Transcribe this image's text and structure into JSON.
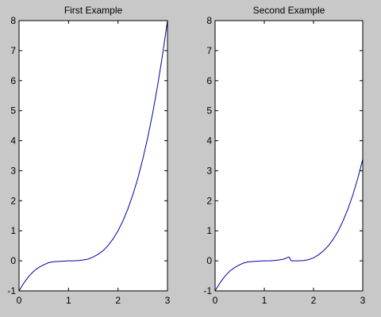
{
  "figure": {
    "background": "#c8c8c8",
    "axes_background": "#ffffff",
    "line_color": "#0000a0"
  },
  "chart_data": [
    {
      "type": "line",
      "title": "First Example",
      "xlabel": "",
      "ylabel": "",
      "xlim": [
        0,
        3
      ],
      "ylim": [
        -1,
        8
      ],
      "xticks": [
        0,
        1,
        2,
        3
      ],
      "yticks": [
        -1,
        0,
        1,
        2,
        3,
        4,
        5,
        6,
        7,
        8
      ],
      "grid": false,
      "series": [
        {
          "color": "#0000a0",
          "x": [
            0,
            0.1,
            0.2,
            0.3,
            0.4,
            0.5,
            0.6,
            0.7,
            0.8,
            0.9,
            1.0,
            1.1,
            1.2,
            1.3,
            1.4,
            1.5,
            1.6,
            1.7,
            1.8,
            1.9,
            2.0,
            2.1,
            2.2,
            2.3,
            2.4,
            2.5,
            2.6,
            2.7,
            2.8,
            2.9,
            3.0
          ],
          "y": [
            -1.0,
            -0.73,
            -0.51,
            -0.34,
            -0.22,
            -0.13,
            -0.06,
            -0.03,
            -0.02,
            -0.01,
            0.0,
            0.0,
            0.01,
            0.03,
            0.06,
            0.13,
            0.22,
            0.34,
            0.51,
            0.73,
            1.0,
            1.33,
            1.73,
            2.2,
            2.74,
            3.38,
            4.1,
            4.91,
            5.83,
            6.86,
            8.0
          ]
        }
      ]
    },
    {
      "type": "line",
      "title": "Second Example",
      "xlabel": "",
      "ylabel": "",
      "xlim": [
        0,
        3
      ],
      "ylim": [
        -1,
        8
      ],
      "xticks": [
        0,
        1,
        2,
        3
      ],
      "yticks": [
        -1,
        0,
        1,
        2,
        3,
        4,
        5,
        6,
        7,
        8
      ],
      "grid": false,
      "series": [
        {
          "color": "#0000a0",
          "x": [
            0,
            0.1,
            0.2,
            0.3,
            0.4,
            0.5,
            0.6,
            0.7,
            0.8,
            0.9,
            1.0,
            1.1,
            1.2,
            1.3,
            1.4,
            1.5,
            1.55,
            1.6,
            1.7,
            1.8,
            1.9,
            2.0,
            2.1,
            2.2,
            2.3,
            2.4,
            2.5,
            2.6,
            2.7,
            2.8,
            2.9,
            3.0
          ],
          "y": [
            -1.0,
            -0.73,
            -0.51,
            -0.34,
            -0.22,
            -0.13,
            -0.06,
            -0.03,
            -0.02,
            -0.01,
            0.0,
            0.0,
            0.01,
            0.03,
            0.06,
            0.13,
            0.0,
            0.0,
            0.0,
            0.01,
            0.04,
            0.1,
            0.2,
            0.33,
            0.5,
            0.72,
            0.99,
            1.33,
            1.73,
            2.2,
            2.75,
            3.38
          ]
        }
      ]
    }
  ]
}
